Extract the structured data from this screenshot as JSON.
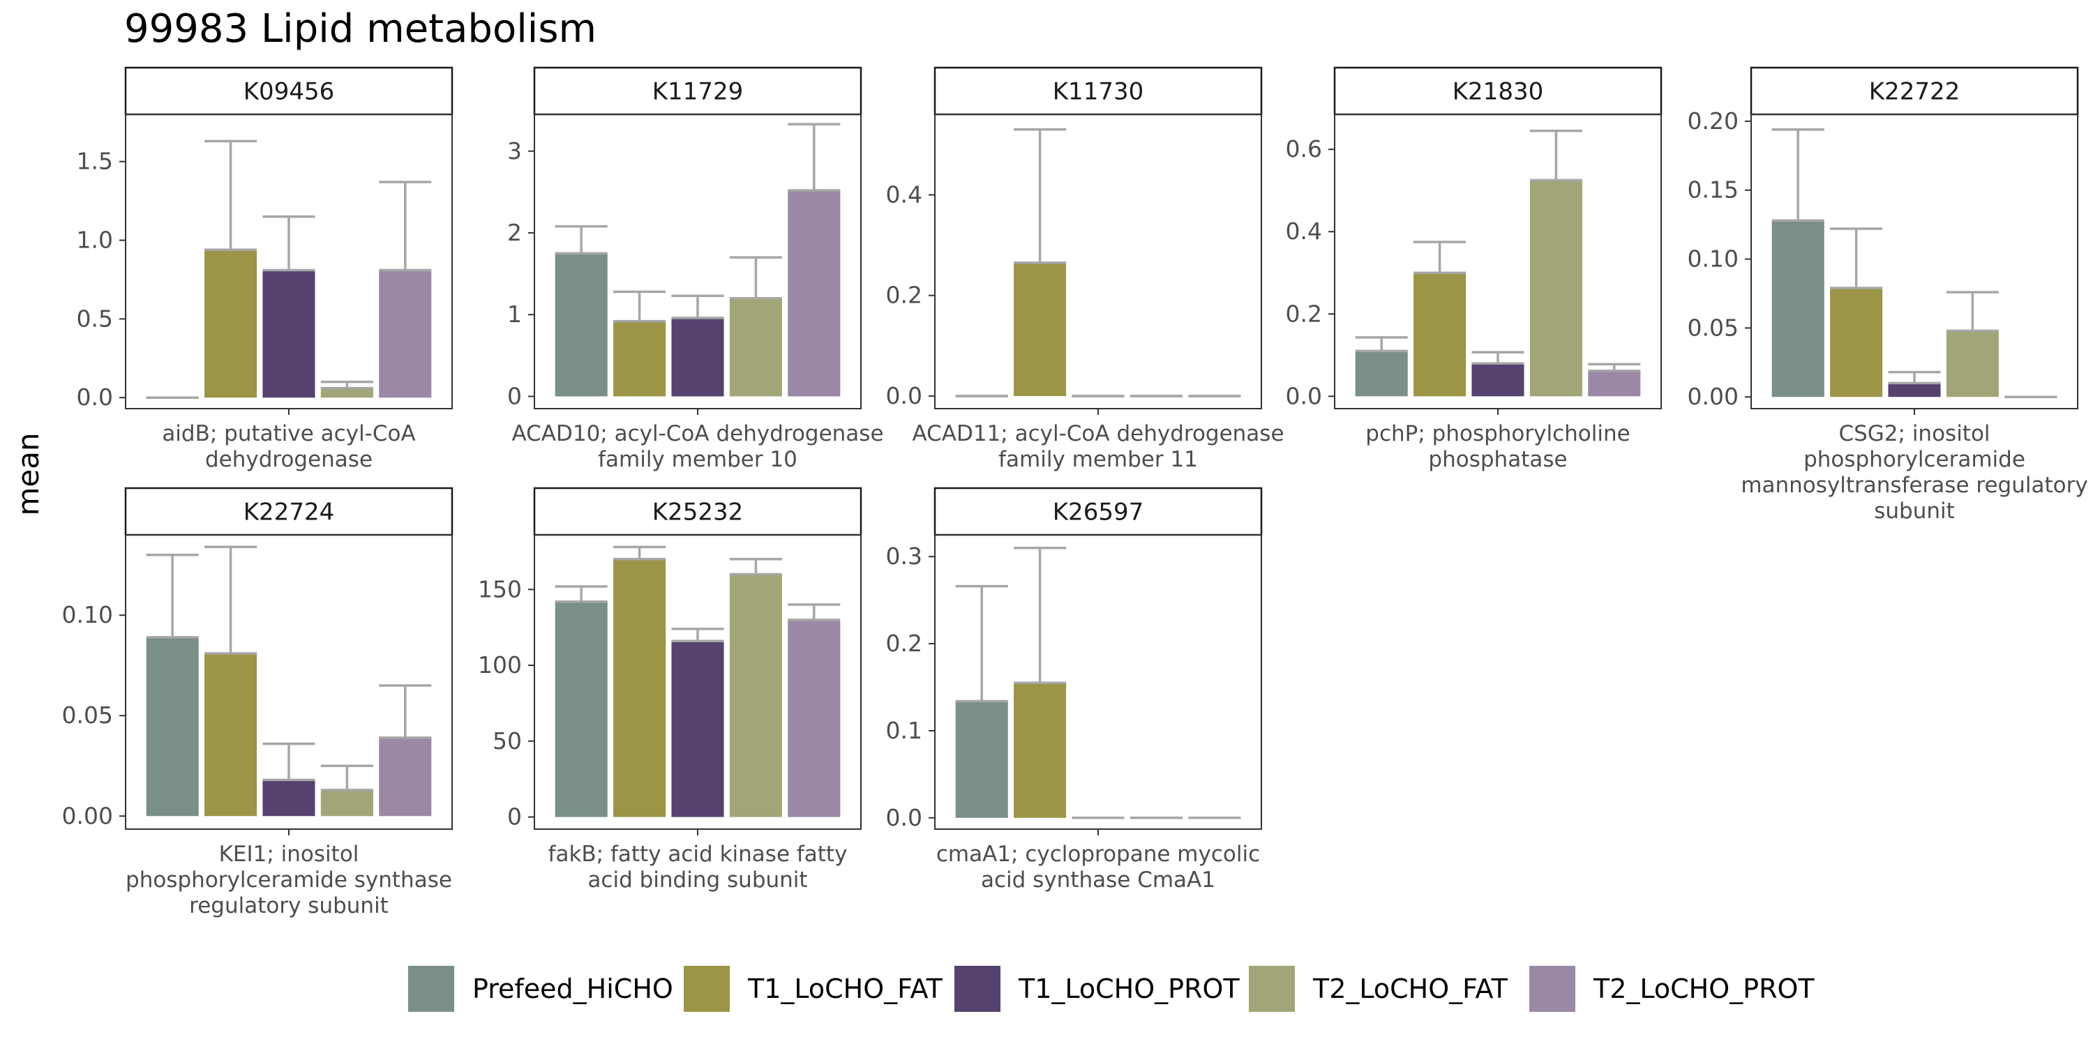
{
  "colors": {
    "Prefeed_HiCHO": "#798f88",
    "T1_LoCHO_FAT": "#9c9447",
    "T1_LoCHO_PROT": "#55426f",
    "T2_LoCHO_FAT": "#a2a577",
    "T2_LoCHO_PROT": "#9a88a6",
    "error_bar": "#a6a6a6"
  },
  "chart_data": {
    "type": "bar",
    "title": "99983 Lipid metabolism",
    "ylabel": "mean",
    "xlabel": "",
    "legend_position": "bottom",
    "grid": false,
    "series_names": [
      "Prefeed_HiCHO",
      "T1_LoCHO_FAT",
      "T1_LoCHO_PROT",
      "T2_LoCHO_FAT",
      "T2_LoCHO_PROT"
    ],
    "panels": [
      {
        "strip": "K09456",
        "category_lines": [
          "aidB; putative acyl-CoA",
          "dehydrogenase"
        ],
        "ylim": [
          -0.07,
          1.8
        ],
        "yticks": [
          0,
          0.5,
          1,
          1.5
        ],
        "ytick_labels": [
          "0.0",
          "0.5",
          "1.0",
          "1.5"
        ],
        "values": [
          0.0,
          0.94,
          0.81,
          0.06,
          0.81
        ],
        "err_upper": [
          0.0,
          1.63,
          1.15,
          0.1,
          1.37
        ]
      },
      {
        "strip": "K11729",
        "category_lines": [
          "ACAD10; acyl-CoA dehydrogenase",
          "family member 10"
        ],
        "ylim": [
          -0.15,
          3.45
        ],
        "yticks": [
          0,
          1,
          2,
          3
        ],
        "ytick_labels": [
          "0",
          "1",
          "2",
          "3"
        ],
        "values": [
          1.75,
          0.92,
          0.96,
          1.2,
          2.52
        ],
        "err_upper": [
          2.08,
          1.28,
          1.23,
          1.7,
          3.33
        ]
      },
      {
        "strip": "K11730",
        "category_lines": [
          "ACAD11; acyl-CoA dehydrogenase",
          "family member 11"
        ],
        "ylim": [
          -0.025,
          0.56
        ],
        "yticks": [
          0,
          0.2,
          0.4
        ],
        "ytick_labels": [
          "0.0",
          "0.2",
          "0.4"
        ],
        "values": [
          0.0,
          0.265,
          0.0,
          0.0,
          0.0
        ],
        "err_upper": [
          0.0,
          0.53,
          0.0,
          0.0,
          0.0
        ]
      },
      {
        "strip": "K21830",
        "category_lines": [
          "pchP; phosphorylcholine",
          "phosphatase"
        ],
        "ylim": [
          -0.03,
          0.685
        ],
        "yticks": [
          0,
          0.2,
          0.4,
          0.6
        ],
        "ytick_labels": [
          "0.0",
          "0.2",
          "0.4",
          "0.6"
        ],
        "values": [
          0.11,
          0.3,
          0.08,
          0.525,
          0.062
        ],
        "err_upper": [
          0.143,
          0.375,
          0.107,
          0.645,
          0.078
        ]
      },
      {
        "strip": "K22722",
        "category_lines": [
          "CSG2; inositol",
          "phosphorylceramide",
          "mannosyltransferase regulatory",
          "subunit"
        ],
        "ylim": [
          -0.0085,
          0.205
        ],
        "yticks": [
          0,
          0.05,
          0.1,
          0.15,
          0.2
        ],
        "ytick_labels": [
          "0.00",
          "0.05",
          "0.10",
          "0.15",
          "0.20"
        ],
        "values": [
          0.128,
          0.079,
          0.01,
          0.048,
          0.0
        ],
        "err_upper": [
          0.194,
          0.122,
          0.018,
          0.076,
          0.0
        ]
      },
      {
        "strip": "K22724",
        "category_lines": [
          "KEI1; inositol",
          "phosphorylceramide synthase",
          "regulatory subunit"
        ],
        "ylim": [
          -0.0065,
          0.14
        ],
        "yticks": [
          0,
          0.05,
          0.1
        ],
        "ytick_labels": [
          "0.00",
          "0.05",
          "0.10"
        ],
        "values": [
          0.089,
          0.081,
          0.018,
          0.013,
          0.039
        ],
        "err_upper": [
          0.13,
          0.134,
          0.036,
          0.025,
          0.065
        ]
      },
      {
        "strip": "K25232",
        "category_lines": [
          "fakB; fatty acid kinase fatty",
          "acid binding subunit"
        ],
        "ylim": [
          -8,
          186
        ],
        "yticks": [
          0,
          50,
          100,
          150
        ],
        "ytick_labels": [
          "0",
          "50",
          "100",
          "150"
        ],
        "values": [
          142,
          170,
          116,
          160,
          130
        ],
        "err_upper": [
          152,
          178,
          124,
          170,
          140
        ]
      },
      {
        "strip": "K26597",
        "category_lines": [
          "cmaA1; cyclopropane mycolic",
          "acid synthase CmaA1"
        ],
        "ylim": [
          -0.013,
          0.325
        ],
        "yticks": [
          0,
          0.1,
          0.2,
          0.3
        ],
        "ytick_labels": [
          "0.0",
          "0.1",
          "0.2",
          "0.3"
        ],
        "values": [
          0.134,
          0.155,
          0.0,
          0.0,
          0.0
        ],
        "err_upper": [
          0.266,
          0.31,
          0.0,
          0.0,
          0.0
        ]
      }
    ]
  }
}
